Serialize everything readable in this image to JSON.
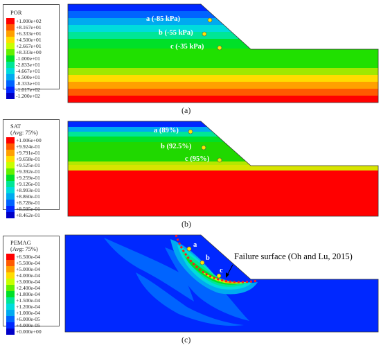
{
  "panel_a": {
    "legend_title": "POR",
    "legend_items": [
      {
        "value": "+1.000e+02",
        "color": "#ff0000"
      },
      {
        "value": "+8.167e+01",
        "color": "#ff5a00"
      },
      {
        "value": "+6.333e+01",
        "color": "#ffa000"
      },
      {
        "value": "+4.500e+01",
        "color": "#ffdc00"
      },
      {
        "value": "+2.667e+01",
        "color": "#c8ff00"
      },
      {
        "value": "+8.333e+00",
        "color": "#64f000"
      },
      {
        "value": "-1.000e+01",
        "color": "#00e028"
      },
      {
        "value": "-2.833e+01",
        "color": "#00e696"
      },
      {
        "value": "-4.667e+01",
        "color": "#00dcdc"
      },
      {
        "value": "-6.500e+01",
        "color": "#00aaf0"
      },
      {
        "value": "-8.333e+01",
        "color": "#0064ff"
      },
      {
        "value": "-1.017e+02",
        "color": "#0028ff"
      },
      {
        "value": "-1.200e+02",
        "color": "#0000c8"
      }
    ],
    "points": [
      {
        "label": "a (-85 kPa)"
      },
      {
        "label": "b (-55 kPa)"
      },
      {
        "label": "c (-35 kPa)"
      }
    ],
    "caption": "(a)"
  },
  "panel_b": {
    "legend_title": "SAT",
    "legend_subtitle": "(Avg: 75%)",
    "legend_items": [
      {
        "value": "+1.006e+00",
        "color": "#ff0000"
      },
      {
        "value": "+9.924e-01",
        "color": "#ff5a00"
      },
      {
        "value": "+9.791e-01",
        "color": "#ffa000"
      },
      {
        "value": "+9.658e-01",
        "color": "#ffdc00"
      },
      {
        "value": "+9.525e-01",
        "color": "#c8ff00"
      },
      {
        "value": "+9.392e-01",
        "color": "#64f000"
      },
      {
        "value": "+9.259e-01",
        "color": "#00e028"
      },
      {
        "value": "+9.126e-01",
        "color": "#00e696"
      },
      {
        "value": "+8.993e-01",
        "color": "#00dcdc"
      },
      {
        "value": "+8.860e-01",
        "color": "#00aaf0"
      },
      {
        "value": "+8.728e-01",
        "color": "#0064ff"
      },
      {
        "value": "+8.595e-01",
        "color": "#0028ff"
      },
      {
        "value": "+8.462e-01",
        "color": "#0000c8"
      }
    ],
    "points": [
      {
        "label": "a (89%)"
      },
      {
        "label": "b (92.5%)"
      },
      {
        "label": "c (95%)"
      }
    ],
    "caption": "(b)"
  },
  "panel_c": {
    "legend_title": "PEMAG",
    "legend_subtitle": "(Avg: 75%)",
    "legend_items": [
      {
        "value": "+6.500e-04",
        "color": "#ff0000"
      },
      {
        "value": "+5.500e-04",
        "color": "#ff5a00"
      },
      {
        "value": "+5.000e-04",
        "color": "#ffa000"
      },
      {
        "value": "+4.000e-04",
        "color": "#ffdc00"
      },
      {
        "value": "+3.000e-04",
        "color": "#c8ff00"
      },
      {
        "value": "+2.400e-04",
        "color": "#64f000"
      },
      {
        "value": "+1.800e-04",
        "color": "#00e028"
      },
      {
        "value": "+1.500e-04",
        "color": "#00e696"
      },
      {
        "value": "+1.200e-04",
        "color": "#00dcdc"
      },
      {
        "value": "+1.000e-04",
        "color": "#00aaf0"
      },
      {
        "value": "+6.000e-05",
        "color": "#0064ff"
      },
      {
        "value": "+4.000e-05",
        "color": "#0028ff"
      },
      {
        "value": "+0.000e+00",
        "color": "#0000c8"
      }
    ],
    "points": [
      {
        "label": "a"
      },
      {
        "label": "b"
      },
      {
        "label": "c"
      }
    ],
    "failure_label": "Failure surface (Oh and Lu, 2015)",
    "caption": "(c)"
  }
}
